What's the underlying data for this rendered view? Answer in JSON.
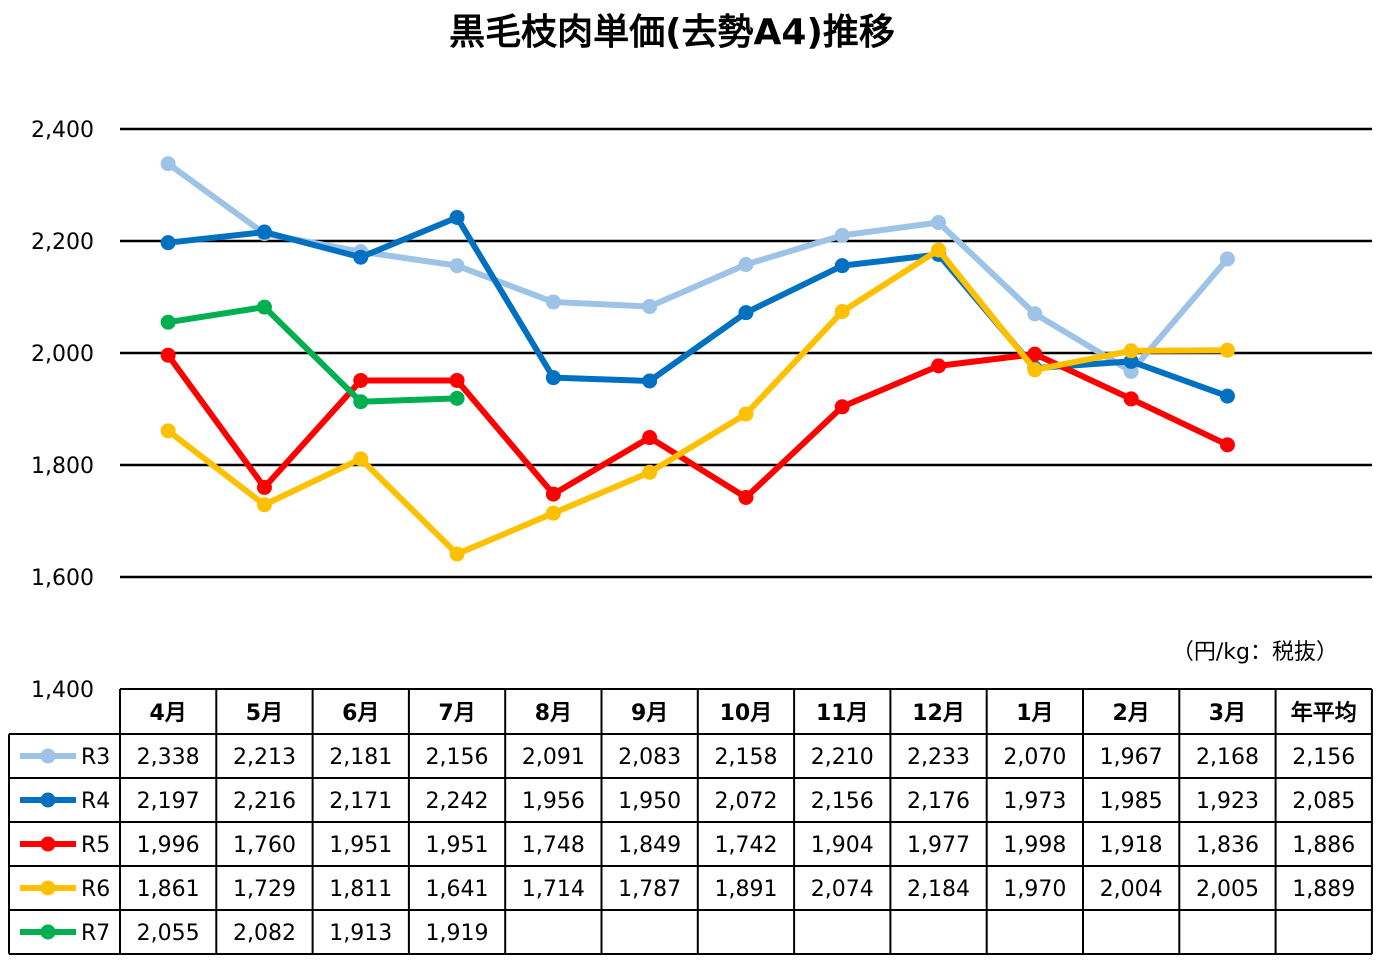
{
  "chart_data": {
    "type": "line",
    "title": "黒毛枝肉単価(去勢A4)推移",
    "unit_note": "（円/kg：税抜）",
    "xlabel": "",
    "ylabel": "",
    "ylim": [
      1400,
      2400
    ],
    "yticks": [
      1400,
      1600,
      1800,
      2000,
      2200,
      2400
    ],
    "ytick_labels": [
      "1,400",
      "1,600",
      "1,800",
      "2,000",
      "2,200",
      "2,400"
    ],
    "grid": true,
    "legend": "table-left",
    "categories": [
      "4月",
      "5月",
      "6月",
      "7月",
      "8月",
      "9月",
      "10月",
      "11月",
      "12月",
      "1月",
      "2月",
      "3月"
    ],
    "avg_header": "年平均",
    "series": [
      {
        "name": "R3",
        "color": "#9DC3E6",
        "values": [
          2338,
          2213,
          2181,
          2156,
          2091,
          2083,
          2158,
          2210,
          2233,
          2070,
          1967,
          2168
        ],
        "labels": [
          "2,338",
          "2,213",
          "2,181",
          "2,156",
          "2,091",
          "2,083",
          "2,158",
          "2,210",
          "2,233",
          "2,070",
          "1,967",
          "2,168"
        ],
        "average": "2,156"
      },
      {
        "name": "R4",
        "color": "#0070C0",
        "values": [
          2197,
          2216,
          2171,
          2242,
          1956,
          1950,
          2072,
          2156,
          2176,
          1973,
          1985,
          1923
        ],
        "labels": [
          "2,197",
          "2,216",
          "2,171",
          "2,242",
          "1,956",
          "1,950",
          "2,072",
          "2,156",
          "2,176",
          "1,973",
          "1,985",
          "1,923"
        ],
        "average": "2,085"
      },
      {
        "name": "R5",
        "color": "#FF0000",
        "values": [
          1996,
          1760,
          1951,
          1951,
          1748,
          1849,
          1742,
          1904,
          1977,
          1998,
          1918,
          1836
        ],
        "labels": [
          "1,996",
          "1,760",
          "1,951",
          "1,951",
          "1,748",
          "1,849",
          "1,742",
          "1,904",
          "1,977",
          "1,998",
          "1,918",
          "1,836"
        ],
        "average": "1,886"
      },
      {
        "name": "R6",
        "color": "#FFC000",
        "values": [
          1861,
          1729,
          1811,
          1641,
          1714,
          1787,
          1891,
          2074,
          2184,
          1970,
          2004,
          2005
        ],
        "labels": [
          "1,861",
          "1,729",
          "1,811",
          "1,641",
          "1,714",
          "1,787",
          "1,891",
          "2,074",
          "2,184",
          "1,970",
          "2,004",
          "2,005"
        ],
        "average": "1,889"
      },
      {
        "name": "R7",
        "color": "#00B050",
        "values": [
          2055,
          2082,
          1913,
          1919,
          null,
          null,
          null,
          null,
          null,
          null,
          null,
          null
        ],
        "labels": [
          "2,055",
          "2,082",
          "1,913",
          "1,919",
          "",
          "",
          "",
          "",
          "",
          "",
          "",
          ""
        ],
        "average": ""
      }
    ]
  }
}
